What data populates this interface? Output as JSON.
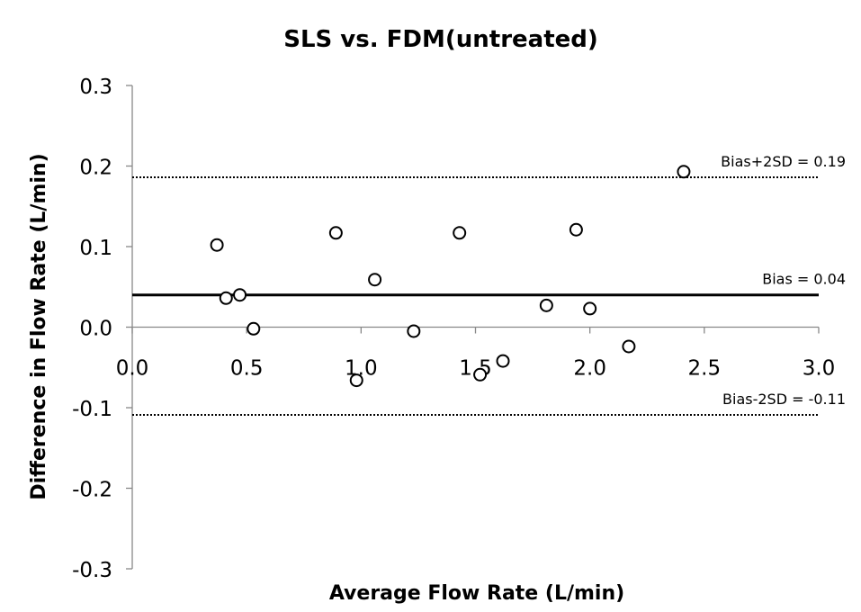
{
  "chart_data": {
    "type": "scatter",
    "title": "SLS vs. FDM(untreated)",
    "xlabel": "Average Flow Rate (L/min)",
    "ylabel": "Difference in Flow Rate (L/min)",
    "xlim": [
      0,
      3
    ],
    "ylim": [
      -0.3,
      0.3
    ],
    "xticks": [
      "0.0",
      "0.5",
      "1.0",
      "1.5",
      "2.0",
      "2.5",
      "3.0"
    ],
    "yticks": [
      "0.3",
      "0.2",
      "0.1",
      "0.0",
      "-0.1",
      "-0.2",
      "-0.3"
    ],
    "grid": false,
    "points": [
      {
        "x": 0.37,
        "y": 0.102
      },
      {
        "x": 0.41,
        "y": 0.036
      },
      {
        "x": 0.47,
        "y": 0.04
      },
      {
        "x": 0.53,
        "y": -0.002
      },
      {
        "x": 0.89,
        "y": 0.117
      },
      {
        "x": 0.98,
        "y": -0.066
      },
      {
        "x": 1.06,
        "y": 0.059
      },
      {
        "x": 1.23,
        "y": -0.005
      },
      {
        "x": 1.43,
        "y": 0.117
      },
      {
        "x": 1.52,
        "y": -0.059
      },
      {
        "x": 1.62,
        "y": -0.042
      },
      {
        "x": 1.81,
        "y": 0.027
      },
      {
        "x": 1.94,
        "y": 0.121
      },
      {
        "x": 2.0,
        "y": 0.023
      },
      {
        "x": 2.17,
        "y": -0.024
      },
      {
        "x": 2.41,
        "y": 0.193
      }
    ],
    "reference_lines": [
      {
        "name": "bias",
        "value": 0.04,
        "label": "Bias = 0.04",
        "style": "solid"
      },
      {
        "name": "upper-limit",
        "value": 0.186,
        "label": "Bias+2SD = 0.19",
        "style": "dotted"
      },
      {
        "name": "lower-limit",
        "value": -0.109,
        "label": "Bias-2SD = -0.11",
        "style": "dotted"
      }
    ]
  }
}
